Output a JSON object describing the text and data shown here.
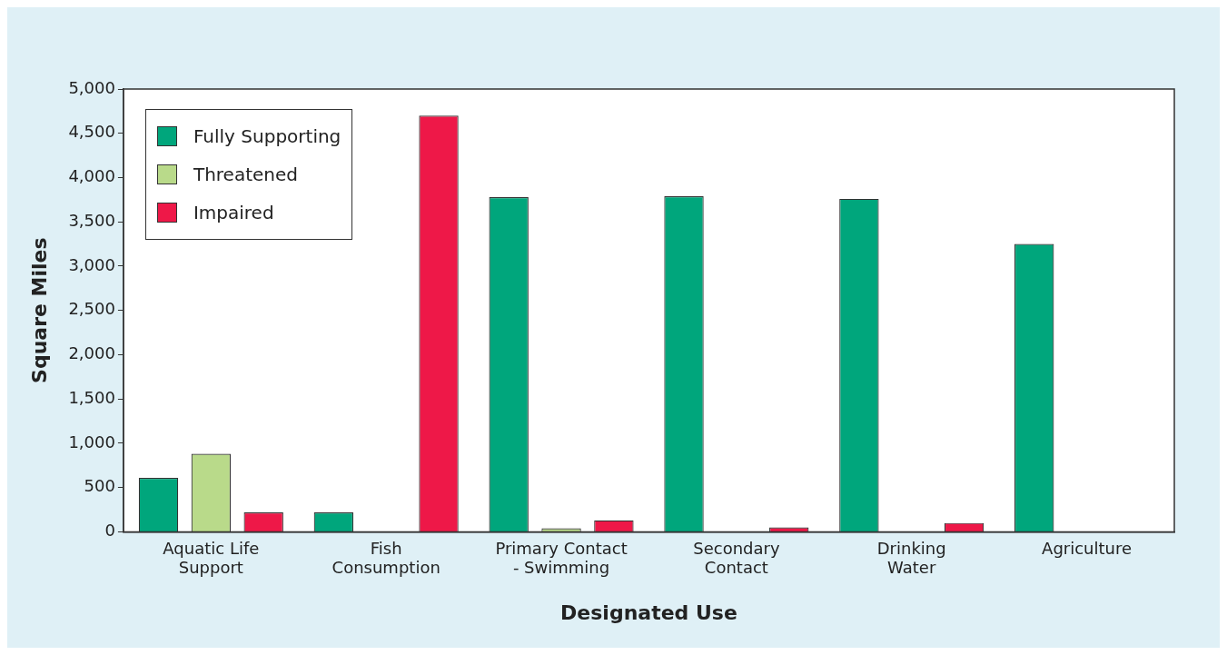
{
  "chart_data": {
    "type": "bar",
    "xlabel": "Designated Use",
    "ylabel": "Square Miles",
    "categories": [
      "Aquatic Life\nSupport",
      "Fish\nConsumption",
      "Primary Contact\n- Swimming",
      "Secondary\nContact",
      "Drinking\nWater",
      "Agriculture"
    ],
    "series": [
      {
        "name": "Fully Supporting",
        "color": "#00a67c",
        "values": [
          610,
          220,
          3780,
          3790,
          3760,
          3250
        ]
      },
      {
        "name": "Threatened",
        "color": "#b9da8a",
        "values": [
          880,
          null,
          40,
          null,
          null,
          null
        ]
      },
      {
        "name": "Impaired",
        "color": "#ee1848",
        "values": [
          220,
          4700,
          130,
          50,
          100,
          null
        ]
      }
    ],
    "ylim": [
      0,
      5000
    ],
    "yticks": [
      0,
      500,
      {
        "value": 1000,
        "label": "1,000"
      },
      {
        "value": 1500,
        "label": "1,500"
      },
      {
        "value": 2000,
        "label": "2,000"
      },
      {
        "value": 2500,
        "label": "2,500"
      },
      {
        "value": 3000,
        "label": "3,000"
      },
      {
        "value": 3500,
        "label": "3,500"
      },
      {
        "value": 4000,
        "label": "4,000"
      },
      {
        "value": 4500,
        "label": "4,500"
      },
      {
        "value": 5000,
        "label": "5,000"
      }
    ],
    "grid": false,
    "legend": "top left"
  }
}
